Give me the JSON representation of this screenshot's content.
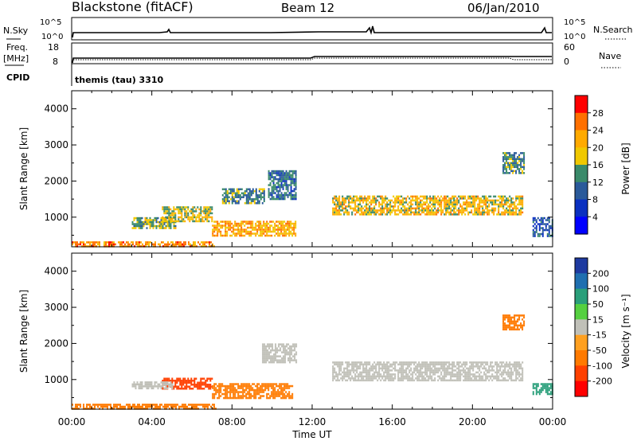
{
  "header": {
    "station": "Blackstone (fitACF)",
    "beam": "Beam 12",
    "date": "06/Jan/2010"
  },
  "top_panels": {
    "nsky_label": "N.Sky",
    "nsearch_label": "N.Search",
    "nsky_ticks": [
      "10^5",
      "10^0"
    ],
    "nsearch_ticks": [
      "10^5",
      "10^0"
    ],
    "freq_label_1": "Freq.",
    "freq_label_2": "[MHz]",
    "freq_ticks": [
      "18",
      "8"
    ],
    "nave_label": "Nave",
    "nave_ticks": [
      "60",
      "0"
    ],
    "cpid_label": "CPID",
    "cpid_value": "themis (tau) 3310"
  },
  "panels": {
    "power": {
      "ylabel": "Slant Range [km]",
      "cbar_label": "Power [dB]",
      "cbar_ticks": [
        "28",
        "24",
        "20",
        "16",
        "12",
        "8",
        "4"
      ],
      "cbar_colors": [
        "#ff0000",
        "#ff7000",
        "#ffaa00",
        "#f0c800",
        "#3a8a6a",
        "#2a5a9a",
        "#0a30c0",
        "#0000ff"
      ]
    },
    "velocity": {
      "ylabel": "Slant Range [km]",
      "cbar_label": "Velocity [m s⁻¹]",
      "cbar_ticks": [
        "200",
        "100",
        "50",
        "15",
        "-15",
        "-50",
        "-100",
        "-200"
      ],
      "cbar_colors": [
        "#1e3aa0",
        "#1f6fb0",
        "#2a9f7a",
        "#55d040",
        "#c0c0b8",
        "#ffa020",
        "#ff7a00",
        "#ff4000",
        "#ff0000"
      ]
    }
  },
  "xaxis": {
    "label": "Time UT",
    "ticks": [
      "00:00",
      "04:00",
      "08:00",
      "12:00",
      "16:00",
      "20:00",
      "00:00"
    ]
  },
  "chart_data": [
    {
      "type": "heatmap",
      "title": "Blackstone (fitACF) Beam 12 06/Jan/2010",
      "panel": "power",
      "xlabel": "Time UT",
      "ylabel": "Slant Range [km]",
      "ylim": [
        180,
        4500
      ],
      "xlim_hours": [
        0,
        24
      ],
      "color_label": "Power [dB]",
      "regions": [
        {
          "t0": 0.0,
          "t1": 7.2,
          "r0": 200,
          "r1": 330,
          "value_db": 22
        },
        {
          "t0": 3.0,
          "t1": 5.2,
          "r0": 700,
          "r1": 1000,
          "value_db": 14
        },
        {
          "t0": 4.5,
          "t1": 7.0,
          "r0": 900,
          "r1": 1300,
          "value_db": 16
        },
        {
          "t0": 7.5,
          "t1": 9.6,
          "r0": 1400,
          "r1": 1800,
          "value_db": 12
        },
        {
          "t0": 7.0,
          "t1": 11.2,
          "r0": 500,
          "r1": 900,
          "value_db": 20
        },
        {
          "t0": 9.8,
          "t1": 11.2,
          "r0": 1500,
          "r1": 2300,
          "value_db": 10
        },
        {
          "t0": 13.0,
          "t1": 22.5,
          "r0": 1100,
          "r1": 1600,
          "value_db": 18
        },
        {
          "t0": 21.5,
          "t1": 22.6,
          "r0": 2200,
          "r1": 2800,
          "value_db": 12
        },
        {
          "t0": 23.0,
          "t1": 24.0,
          "r0": 500,
          "r1": 1000,
          "value_db": 8
        }
      ]
    },
    {
      "type": "heatmap",
      "title": "Blackstone (fitACF) Beam 12 06/Jan/2010",
      "panel": "velocity",
      "xlabel": "Time UT",
      "ylabel": "Slant Range [km]",
      "ylim": [
        180,
        4500
      ],
      "xlim_hours": [
        0,
        24
      ],
      "color_label": "Velocity [m s⁻¹]",
      "regions": [
        {
          "t0": 0.0,
          "t1": 7.2,
          "r0": 200,
          "r1": 330,
          "value_ms": -60
        },
        {
          "t0": 4.5,
          "t1": 7.0,
          "r0": 750,
          "r1": 1050,
          "value_ms": -120
        },
        {
          "t0": 3.0,
          "t1": 5.0,
          "r0": 750,
          "r1": 950,
          "value_ms": 0
        },
        {
          "t0": 7.0,
          "t1": 11.0,
          "r0": 500,
          "r1": 900,
          "value_ms": -80
        },
        {
          "t0": 9.5,
          "t1": 11.2,
          "r0": 1500,
          "r1": 2000,
          "value_ms": 0
        },
        {
          "t0": 13.0,
          "t1": 22.5,
          "r0": 1000,
          "r1": 1500,
          "value_ms": 0
        },
        {
          "t0": 21.5,
          "t1": 22.6,
          "r0": 2400,
          "r1": 2800,
          "value_ms": -50
        },
        {
          "t0": 23.0,
          "t1": 24.0,
          "r0": 600,
          "r1": 900,
          "value_ms": 50
        }
      ]
    }
  ]
}
